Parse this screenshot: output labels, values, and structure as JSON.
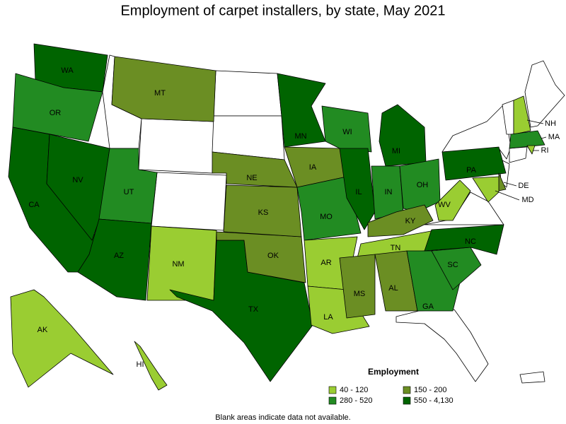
{
  "title": "Employment of carpet installers, by state, May 2021",
  "legend": {
    "title": "Employment",
    "items": [
      {
        "label": "40 - 120",
        "color": "#9acd32"
      },
      {
        "label": "150 - 200",
        "color": "#6b8e23"
      },
      {
        "label": "280 - 520",
        "color": "#228b22"
      },
      {
        "label": "550 - 4,130",
        "color": "#006400"
      }
    ]
  },
  "states": [
    {
      "label": "WA",
      "color": "#006400"
    },
    {
      "label": "OR",
      "color": "#228b22"
    },
    {
      "label": "CA",
      "color": "#006400"
    },
    {
      "label": "NV",
      "color": "#006400"
    },
    {
      "label": "MT",
      "color": "#6b8e23"
    },
    {
      "label": "UT",
      "color": "#228b22"
    },
    {
      "label": "AZ",
      "color": "#006400"
    },
    {
      "label": "NM",
      "color": "#9acd32"
    },
    {
      "label": "TX",
      "color": "#006400"
    },
    {
      "label": "OK",
      "color": "#6b8e23"
    },
    {
      "label": "KS",
      "color": "#6b8e23"
    },
    {
      "label": "NE",
      "color": "#6b8e23"
    },
    {
      "label": "IA",
      "color": "#6b8e23"
    },
    {
      "label": "MN",
      "color": "#006400"
    },
    {
      "label": "WI",
      "color": "#228b22"
    },
    {
      "label": "MO",
      "color": "#228b22"
    },
    {
      "label": "AR",
      "color": "#9acd32"
    },
    {
      "label": "LA",
      "color": "#9acd32"
    },
    {
      "label": "IL",
      "color": "#006400"
    },
    {
      "label": "MI",
      "color": "#006400"
    },
    {
      "label": "IN",
      "color": "#228b22"
    },
    {
      "label": "OH",
      "color": "#228b22"
    },
    {
      "label": "KY",
      "color": "#6b8e23"
    },
    {
      "label": "TN",
      "color": "#9acd32"
    },
    {
      "label": "MS",
      "color": "#6b8e23"
    },
    {
      "label": "AL",
      "color": "#6b8e23"
    },
    {
      "label": "GA",
      "color": "#228b22"
    },
    {
      "label": "SC",
      "color": "#228b22"
    },
    {
      "label": "NC",
      "color": "#006400"
    },
    {
      "label": "WV",
      "color": "#9acd32"
    },
    {
      "label": "PA",
      "color": "#006400"
    },
    {
      "label": "DE",
      "color": "#6b8e23"
    },
    {
      "label": "MD",
      "color": "#9acd32"
    },
    {
      "label": "NH",
      "color": "#9acd32"
    },
    {
      "label": "MA",
      "color": "#228b22"
    },
    {
      "label": "RI",
      "color": "#9acd32"
    },
    {
      "label": "AK",
      "color": "#9acd32"
    },
    {
      "label": "HI",
      "color": "#9acd32"
    }
  ],
  "note": "Blank areas indicate data not available."
}
